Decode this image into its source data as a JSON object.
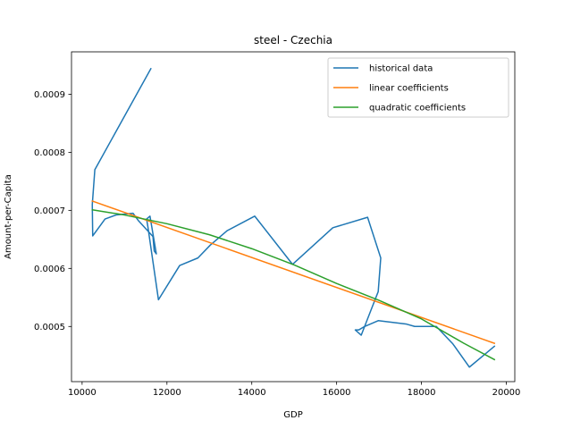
{
  "chart_data": {
    "type": "line",
    "title": "steel - Czechia",
    "xlabel": "GDP",
    "ylabel": "Amount-per-Capita",
    "xlim": [
      9750,
      20200
    ],
    "ylim": [
      0.000405,
      0.000973
    ],
    "xticks": [
      10000,
      12000,
      14000,
      16000,
      18000,
      20000
    ],
    "xtick_labels": [
      "10000",
      "12000",
      "14000",
      "16000",
      "18000",
      "20000"
    ],
    "yticks": [
      0.0005,
      0.0006,
      0.0007,
      0.0008,
      0.0009
    ],
    "ytick_labels": [
      "0.0005",
      "0.0006",
      "0.0007",
      "0.0008",
      "0.0009"
    ],
    "grid": false,
    "legend_position": "upper right",
    "series": [
      {
        "name": "historical data",
        "color": "#1f77b4",
        "x": [
          11620,
          10300,
          10240,
          10250,
          10540,
          10800,
          11200,
          11330,
          11670,
          11700,
          11750,
          11600,
          11520,
          11550,
          11800,
          12300,
          12730,
          13020,
          13420,
          14070,
          14960,
          15910,
          16730,
          17040,
          16980,
          16830,
          16580,
          16440,
          16520,
          16660,
          16980,
          17650,
          17840,
          18350,
          18740,
          19130,
          19540,
          19720
        ],
        "y": [
          0.000944,
          0.00077,
          0.00071,
          0.000656,
          0.000685,
          0.000692,
          0.000695,
          0.000682,
          0.000655,
          0.00063,
          0.000625,
          0.00069,
          0.000685,
          0.000672,
          0.000546,
          0.000605,
          0.000618,
          0.00064,
          0.000665,
          0.00069,
          0.000607,
          0.00067,
          0.000688,
          0.000618,
          0.00056,
          0.000532,
          0.000485,
          0.000494,
          0.000494,
          0.0005,
          0.00051,
          0.000504,
          0.0005,
          0.0005,
          0.00047,
          0.00043,
          0.000455,
          0.000466
        ]
      },
      {
        "name": "linear coefficients",
        "color": "#ff7f0e",
        "x": [
          10240,
          19720
        ],
        "y": [
          0.000716,
          0.000471
        ]
      },
      {
        "name": "quadratic coefficients",
        "color": "#2ca02c",
        "x": [
          10240,
          11000,
          12000,
          13000,
          14000,
          15000,
          16000,
          17000,
          18000,
          19000,
          19720
        ],
        "y": [
          0.000701,
          0.000692,
          0.000677,
          0.000658,
          0.000634,
          0.000606,
          0.000574,
          0.000545,
          0.000513,
          0.000471,
          0.000443
        ]
      }
    ]
  }
}
